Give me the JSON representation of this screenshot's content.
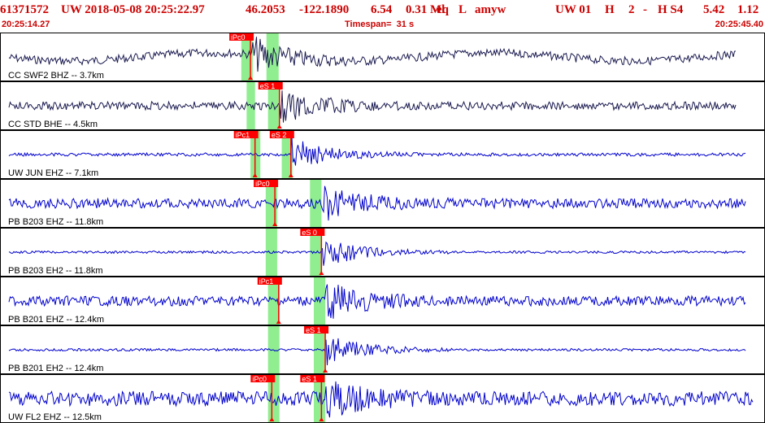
{
  "header": {
    "title_parts": [
      "61371572",
      "UW 2018-05-08 20:25:22.97",
      "46.2053",
      "-122.1890",
      "6.54",
      "0.31 Ml",
      "eq",
      "L",
      "amyw",
      "UW 01",
      "H",
      "2",
      "-",
      "H S4",
      "5.42",
      "1.12"
    ],
    "start_time": "20:25:14.27",
    "timespan": "Timespan=  31 s",
    "end_time": "20:25:45.40"
  },
  "colors": {
    "header_text": "#cc0000",
    "trace_dark": "#1a1a50",
    "trace_blue": "#0000cc",
    "pick_window": "#90ee90",
    "pick_marker": "#ff0000",
    "pick_label_text": "#ffffff"
  },
  "channels": [
    {
      "label": "CC SWF2 BHZ -- 3.7km",
      "trace": "dark",
      "p_window": [
        0.315,
        0.33
      ],
      "s_window": [
        0.348,
        0.364
      ],
      "picks": [
        {
          "label": "iPc0",
          "pos": 0.327
        }
      ],
      "onset": 0.33,
      "amp": "mixed"
    },
    {
      "label": "CC STD BHE -- 4.5km",
      "trace": "dark",
      "p_window": [
        0.322,
        0.333
      ],
      "s_window": [
        0.35,
        0.365
      ],
      "picks": [
        {
          "label": "eS 1",
          "pos": 0.365
        }
      ],
      "onset": 0.365,
      "amp": "steady"
    },
    {
      "label": "UW JUN EHZ -- 7.1km",
      "trace": "blue",
      "p_window": [
        0.327,
        0.34
      ],
      "s_window": [
        0.368,
        0.382
      ],
      "picks": [
        {
          "label": "iPc1",
          "pos": 0.333
        },
        {
          "label": "eS 2",
          "pos": 0.38
        }
      ],
      "onset": 0.38,
      "amp": "small"
    },
    {
      "label": "PB B203 EHZ -- 11.8km",
      "trace": "blue",
      "p_window": [
        0.347,
        0.362
      ],
      "s_window": [
        0.405,
        0.42
      ],
      "picks": [
        {
          "label": "iPc0",
          "pos": 0.359
        }
      ],
      "onset": 0.42,
      "amp": "noisy"
    },
    {
      "label": "PB B203 EH2 -- 11.8km",
      "trace": "blue",
      "p_window": [
        0.347,
        0.362
      ],
      "s_window": [
        0.405,
        0.42
      ],
      "picks": [
        {
          "label": "eS 0",
          "pos": 0.42
        }
      ],
      "onset": 0.42,
      "amp": "quiet"
    },
    {
      "label": "PB B201 EHZ -- 12.4km",
      "trace": "blue",
      "p_window": [
        0.35,
        0.365
      ],
      "s_window": [
        0.41,
        0.425
      ],
      "picks": [
        {
          "label": "iPc1",
          "pos": 0.364
        }
      ],
      "onset": 0.425,
      "amp": "noisy"
    },
    {
      "label": "PB B201 EH2 -- 12.4km",
      "trace": "blue",
      "p_window": [
        0.35,
        0.365
      ],
      "s_window": [
        0.41,
        0.425
      ],
      "picks": [
        {
          "label": "eS 1",
          "pos": 0.425
        }
      ],
      "onset": 0.425,
      "amp": "quiet"
    },
    {
      "label": "UW FL2 EHZ -- 12.5km",
      "trace": "blue",
      "p_window": [
        0.35,
        0.365
      ],
      "s_window": [
        0.41,
        0.425
      ],
      "picks": [
        {
          "label": "iPc0",
          "pos": 0.355
        },
        {
          "label": "eS 1",
          "pos": 0.42
        }
      ],
      "onset": 0.42,
      "amp": "veryNoisy"
    }
  ]
}
